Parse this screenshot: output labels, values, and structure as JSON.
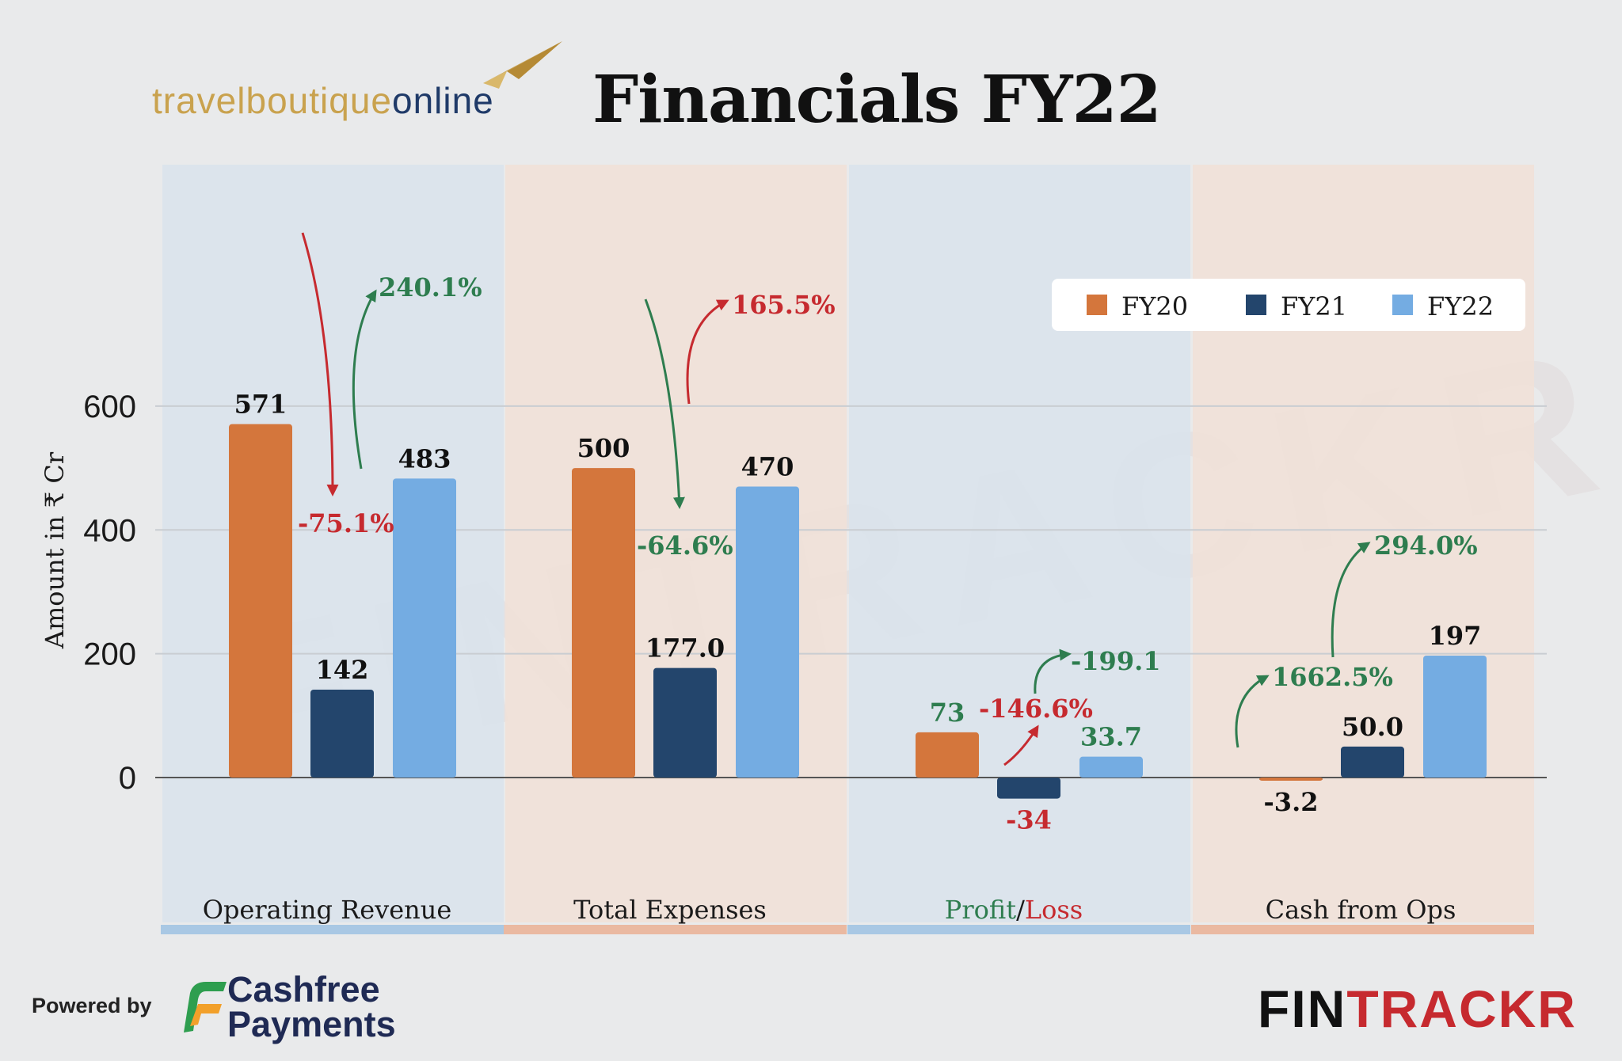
{
  "header": {
    "logo_part1": "travelboutique",
    "logo_part2": "online",
    "title": "Financials FY22"
  },
  "footer": {
    "powered_by": "Powered by",
    "cashfree_line1": "Cashfree",
    "cashfree_line2": "Payments",
    "brand_fin": "FIN",
    "brand_trackr": "TRACKR"
  },
  "watermark": "FINTRACKR",
  "colors": {
    "fy20": "#d4763c",
    "fy21": "#23456c",
    "fy22": "#74ace2",
    "positive": "#2e7d4f",
    "negative": "#c62a2f",
    "panel_blue": "#d9e3ec",
    "panel_orange": "#f1e0d7",
    "strip_blue": "#a9c8e4",
    "strip_orange": "#eab9a1"
  },
  "chart_data": {
    "type": "bar",
    "ylabel": "Amount in ₹ Cr",
    "xlabel": "",
    "ylim": [
      -170,
      650
    ],
    "yticks": [
      0,
      200,
      400,
      600
    ],
    "grid": true,
    "legend_position": "top-right",
    "categories": [
      "Operating Revenue",
      "Total Expenses",
      "Profit/Loss",
      "Cash from Ops"
    ],
    "category_label_parts": [
      [
        {
          "text": "Operating Revenue",
          "tone": "neutral"
        }
      ],
      [
        {
          "text": "Total Expenses",
          "tone": "neutral"
        }
      ],
      [
        {
          "text": "Profit",
          "tone": "positive"
        },
        {
          "text": "/",
          "tone": "neutral"
        },
        {
          "text": "Loss",
          "tone": "negative"
        }
      ],
      [
        {
          "text": "Cash from Ops",
          "tone": "neutral"
        }
      ]
    ],
    "series": [
      {
        "name": "FY20",
        "values": [
          571,
          500,
          73,
          -3.2
        ],
        "labels": [
          "571",
          "500",
          "73",
          "-3.2"
        ]
      },
      {
        "name": "FY21",
        "values": [
          142,
          177.0,
          -34,
          50.0
        ],
        "labels": [
          "142",
          "177.0",
          "-34",
          "50.0"
        ]
      },
      {
        "name": "FY22",
        "values": [
          483,
          470,
          33.7,
          197
        ],
        "labels": [
          "483",
          "470",
          "33.7",
          "197"
        ]
      }
    ],
    "annotations": [
      {
        "category": 0,
        "from": "FY20",
        "to": "FY21",
        "text": "-75.1%",
        "tone": "negative"
      },
      {
        "category": 0,
        "from": "FY21",
        "to": "FY22",
        "text": "240.1%",
        "tone": "positive"
      },
      {
        "category": 1,
        "from": "FY20",
        "to": "FY21",
        "text": "-64.6%",
        "tone": "positive"
      },
      {
        "category": 1,
        "from": "FY21",
        "to": "FY22",
        "text": "165.5%",
        "tone": "negative"
      },
      {
        "category": 2,
        "from": "FY20",
        "to": "FY21",
        "text": "-146.6%",
        "tone": "negative"
      },
      {
        "category": 2,
        "from": "FY21",
        "to": "FY22",
        "text": "-199.1",
        "tone": "positive"
      },
      {
        "category": 3,
        "from": "FY20",
        "to": "FY21",
        "text": "1662.5%",
        "tone": "positive"
      },
      {
        "category": 3,
        "from": "FY21",
        "to": "FY22",
        "text": "294.0%",
        "tone": "positive"
      }
    ]
  }
}
